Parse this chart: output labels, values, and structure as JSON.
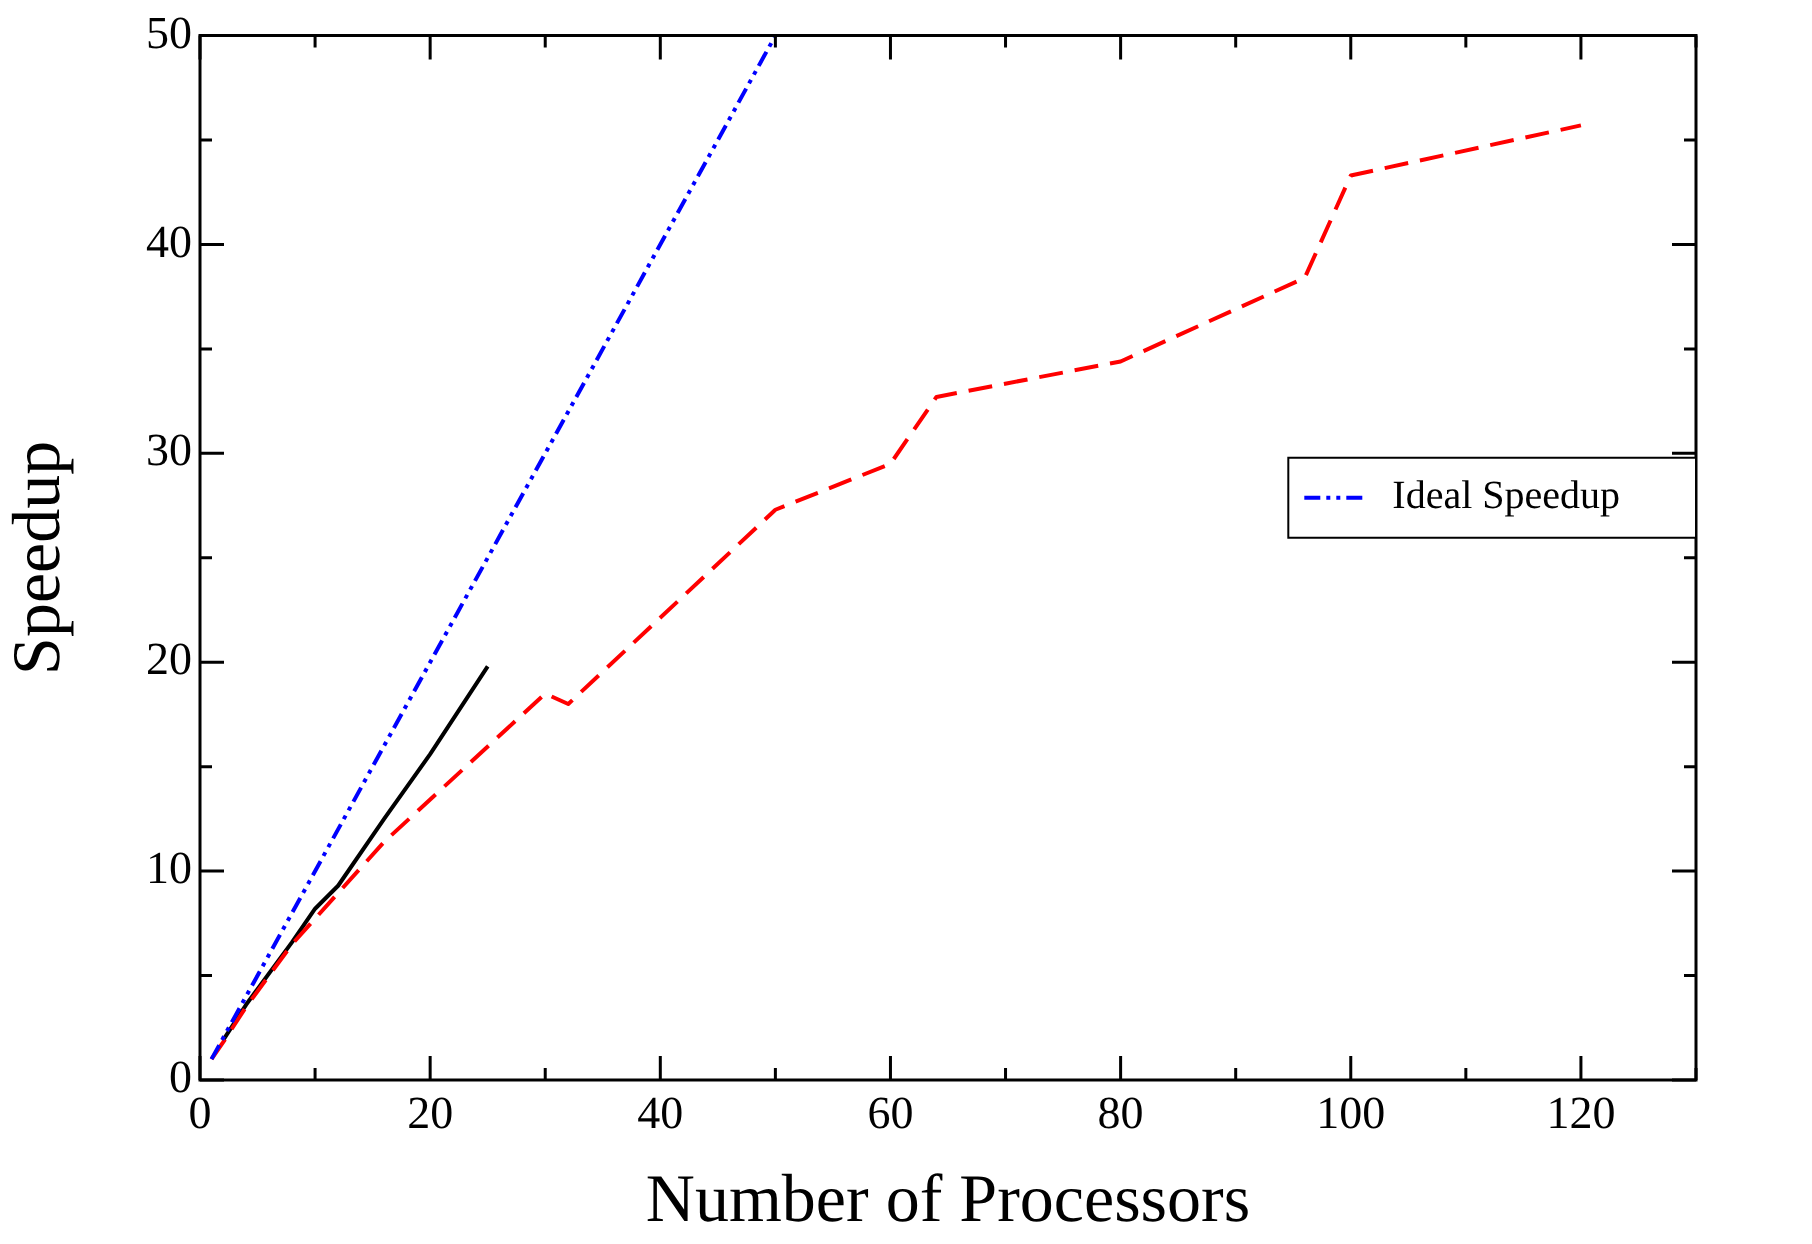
{
  "chart_data": {
    "type": "line",
    "xlabel": "Number of Processors",
    "ylabel": "Speedup",
    "xlim": [
      0,
      130
    ],
    "ylim": [
      0,
      50
    ],
    "xticks": [
      0,
      {
        "value": 10,
        "label": null
      },
      20,
      {
        "value": 30,
        "label": null
      },
      40,
      {
        "value": 50,
        "label": null
      },
      60,
      {
        "value": 70,
        "label": null
      },
      80,
      {
        "value": 90,
        "label": null
      },
      100,
      {
        "value": 110,
        "label": null
      },
      120,
      {
        "value": 130,
        "label": null
      }
    ],
    "yticks": [
      0,
      {
        "value": 5,
        "label": null
      },
      10,
      {
        "value": 15,
        "label": null
      },
      20,
      {
        "value": 25,
        "label": null
      },
      30,
      {
        "value": 35,
        "label": null
      },
      40,
      {
        "value": 45,
        "label": null
      },
      50
    ],
    "grid": false,
    "legend": "right",
    "marker": "none",
    "series": [
      {
        "color": "#000000",
        "line_style": "solid",
        "x": [
          2,
          4,
          8,
          10,
          12,
          16,
          20,
          25
        ],
        "values": [
          1.9,
          3.6,
          6.6,
          8.2,
          9.3,
          12.5,
          15.6,
          19.8
        ]
      },
      {
        "color": "#ff0000",
        "line_style": "dashed",
        "x": [
          1,
          2,
          4,
          8,
          16,
          30,
          32,
          50,
          60,
          64,
          80,
          96,
          100,
          120
        ],
        "values": [
          1,
          1.8,
          3.5,
          6.5,
          11.4,
          18.5,
          18.0,
          27.3,
          29.5,
          32.7,
          34.4,
          38.4,
          43.3,
          45.7
        ]
      },
      {
        "name": "Ideal Speedup",
        "color": "#0000ff",
        "line_style": "dotted",
        "x": [
          1,
          50
        ],
        "values": [
          1,
          50
        ]
      }
    ]
  }
}
